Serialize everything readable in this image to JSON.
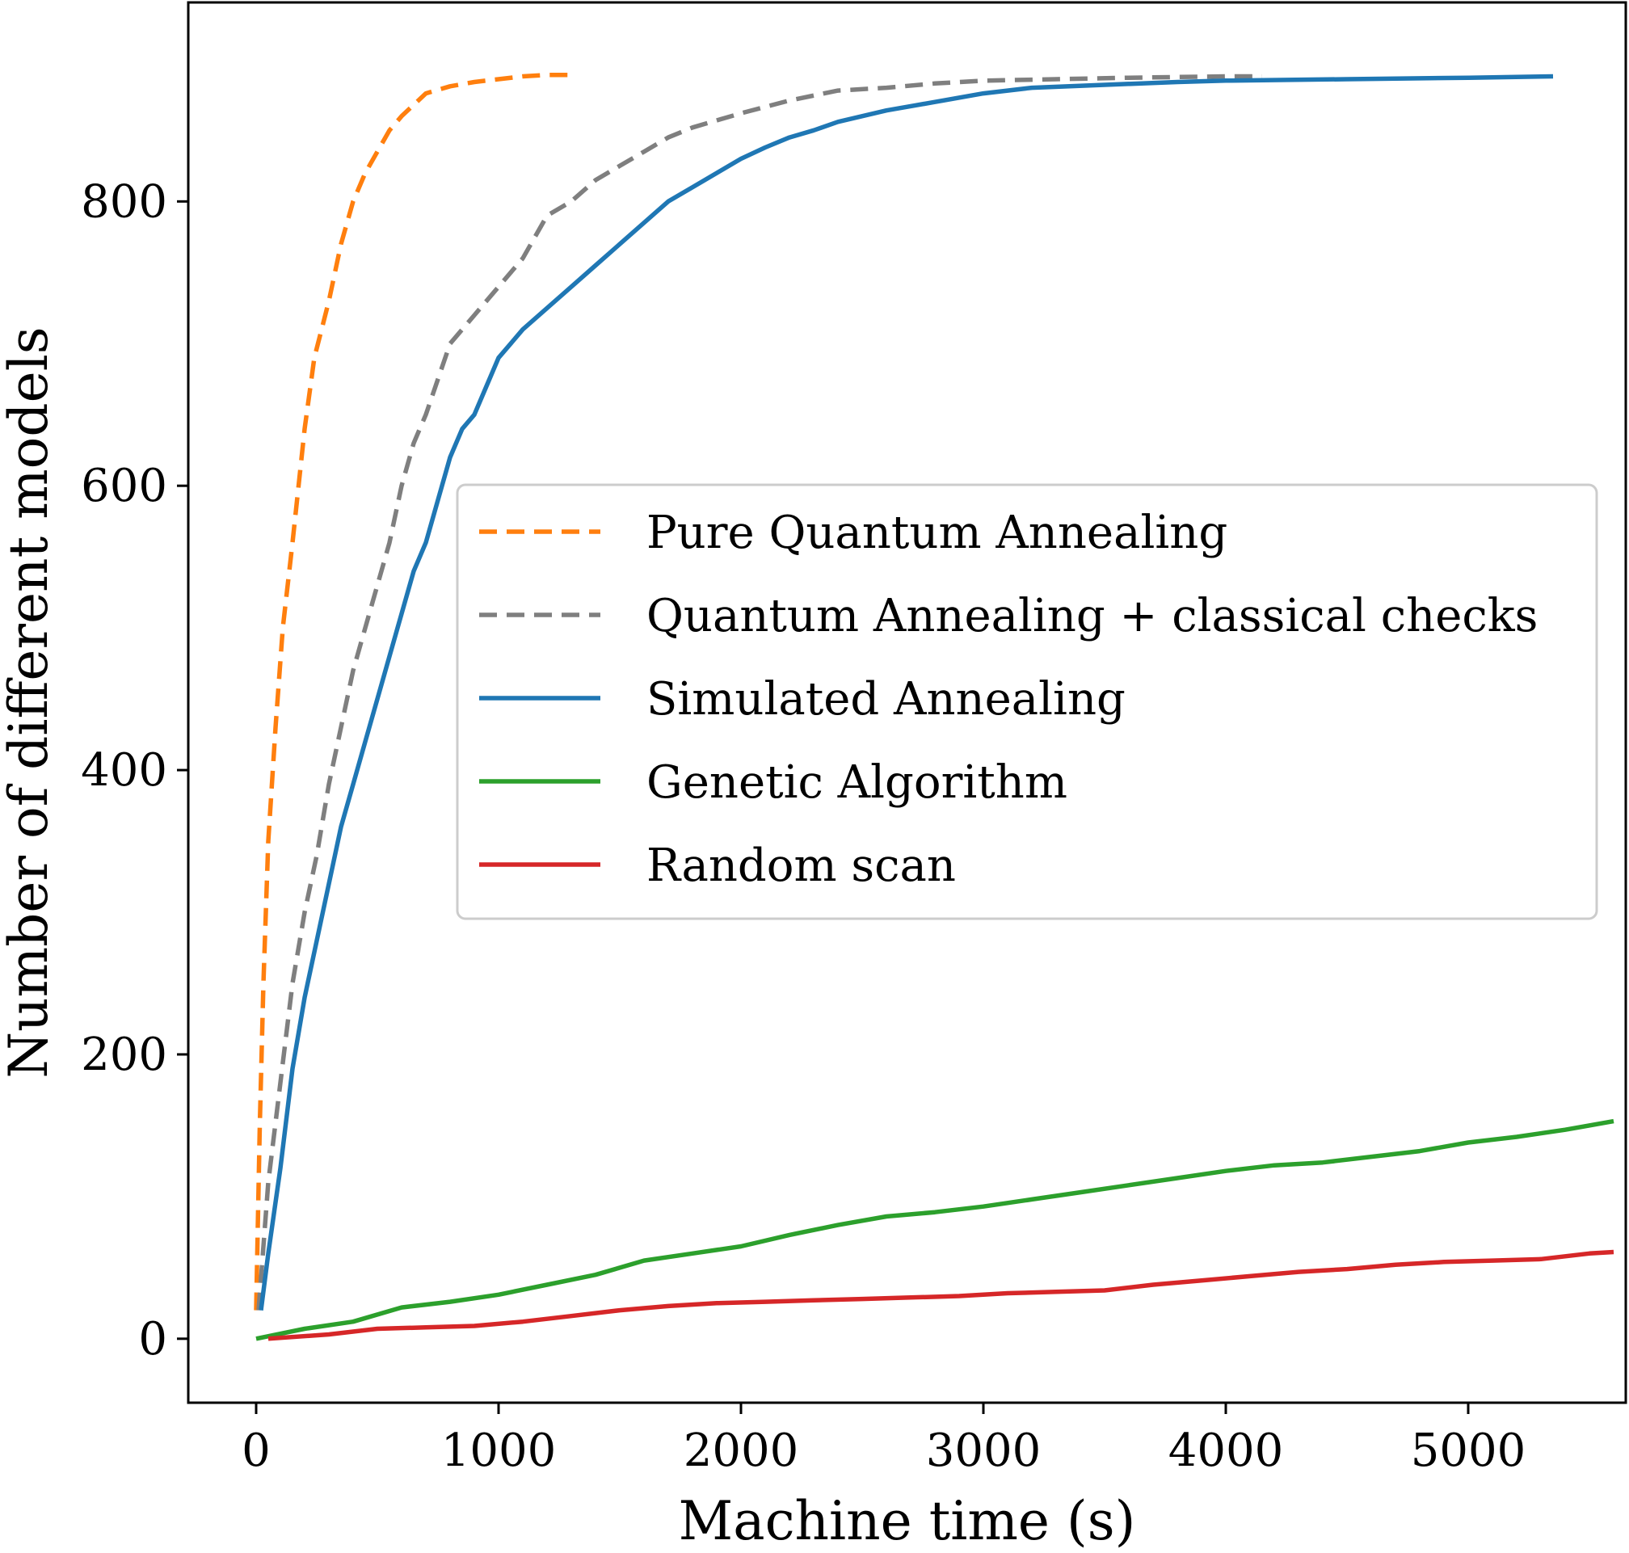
{
  "chart_data": {
    "type": "line",
    "xlabel": "Machine time (s)",
    "ylabel": "Number of different models",
    "xlim": [
      -280,
      5650
    ],
    "ylim": [
      -45,
      940
    ],
    "xticks": [
      0,
      1000,
      2000,
      3000,
      4000,
      5000
    ],
    "yticks": [
      0,
      200,
      400,
      600,
      800
    ],
    "xtick_labels": [
      "0",
      "1000",
      "2000",
      "3000",
      "4000",
      "5000"
    ],
    "ytick_labels": [
      "0",
      "200",
      "400",
      "600",
      "800"
    ],
    "grid": false,
    "legend_position": "center-right",
    "series": [
      {
        "name": "Pure Quantum Annealing",
        "color": "#ff7f0e",
        "style": "dashed",
        "x": [
          0,
          15,
          30,
          50,
          80,
          110,
          150,
          200,
          240,
          270,
          300,
          350,
          400,
          450,
          500,
          550,
          600,
          700,
          800,
          900,
          1000,
          1100,
          1200,
          1300
        ],
        "y": [
          20,
          150,
          250,
          350,
          430,
          500,
          560,
          640,
          690,
          710,
          730,
          770,
          800,
          820,
          835,
          850,
          860,
          876,
          881,
          884,
          886,
          888,
          889,
          889
        ]
      },
      {
        "name": "Quantum Annealing  + classical checks",
        "color": "#7f7f7f",
        "style": "dashed",
        "x": [
          10,
          50,
          100,
          150,
          200,
          250,
          300,
          350,
          400,
          450,
          500,
          550,
          600,
          650,
          700,
          800,
          900,
          1000,
          1100,
          1200,
          1300,
          1400,
          1500,
          1600,
          1700,
          1800,
          1900,
          2000,
          2200,
          2400,
          2600,
          2800,
          3000,
          3300,
          3600,
          4000,
          4150
        ],
        "y": [
          20,
          110,
          180,
          250,
          300,
          340,
          390,
          430,
          470,
          500,
          530,
          560,
          600,
          630,
          650,
          700,
          720,
          740,
          760,
          790,
          800,
          815,
          825,
          835,
          845,
          852,
          857,
          862,
          871,
          878,
          880,
          883,
          885,
          886,
          887,
          888,
          888
        ]
      },
      {
        "name": "Simulated Annealing",
        "color": "#1f77b4",
        "style": "solid",
        "x": [
          20,
          50,
          100,
          150,
          200,
          250,
          300,
          350,
          400,
          450,
          500,
          550,
          600,
          650,
          700,
          750,
          800,
          850,
          900,
          950,
          1000,
          1050,
          1100,
          1200,
          1300,
          1400,
          1500,
          1600,
          1700,
          1800,
          1900,
          2000,
          2100,
          2200,
          2300,
          2400,
          2600,
          2800,
          3000,
          3200,
          3500,
          3800,
          4000,
          4500,
          5000,
          5350
        ],
        "y": [
          20,
          60,
          120,
          190,
          240,
          280,
          320,
          360,
          390,
          420,
          450,
          480,
          510,
          540,
          560,
          590,
          620,
          640,
          650,
          670,
          690,
          700,
          710,
          725,
          740,
          755,
          770,
          785,
          800,
          810,
          820,
          830,
          838,
          845,
          850,
          856,
          864,
          870,
          876,
          880,
          882,
          884,
          885,
          886,
          887,
          888
        ]
      },
      {
        "name": "Genetic Algorithm",
        "color": "#2ca02c",
        "style": "solid",
        "x": [
          0,
          200,
          400,
          600,
          800,
          1000,
          1200,
          1400,
          1600,
          1800,
          2000,
          2200,
          2400,
          2600,
          2800,
          3000,
          3200,
          3400,
          3600,
          3800,
          4000,
          4200,
          4400,
          4600,
          4800,
          5000,
          5200,
          5400,
          5600
        ],
        "y": [
          0,
          7,
          12,
          22,
          26,
          31,
          38,
          45,
          55,
          60,
          65,
          73,
          80,
          86,
          89,
          93,
          98,
          103,
          108,
          113,
          118,
          122,
          124,
          128,
          132,
          138,
          142,
          147,
          153
        ]
      },
      {
        "name": "Random scan",
        "color": "#d62728",
        "style": "solid",
        "x": [
          50,
          300,
          500,
          700,
          900,
          1100,
          1300,
          1500,
          1700,
          1900,
          2100,
          2300,
          2500,
          2700,
          2900,
          3100,
          3300,
          3500,
          3700,
          3900,
          4100,
          4300,
          4500,
          4700,
          4900,
          5100,
          5300,
          5500,
          5600
        ],
        "y": [
          0,
          3,
          7,
          8,
          9,
          12,
          16,
          20,
          23,
          25,
          26,
          27,
          28,
          29,
          30,
          32,
          33,
          34,
          38,
          41,
          44,
          47,
          49,
          52,
          54,
          55,
          56,
          60,
          61
        ]
      }
    ]
  }
}
